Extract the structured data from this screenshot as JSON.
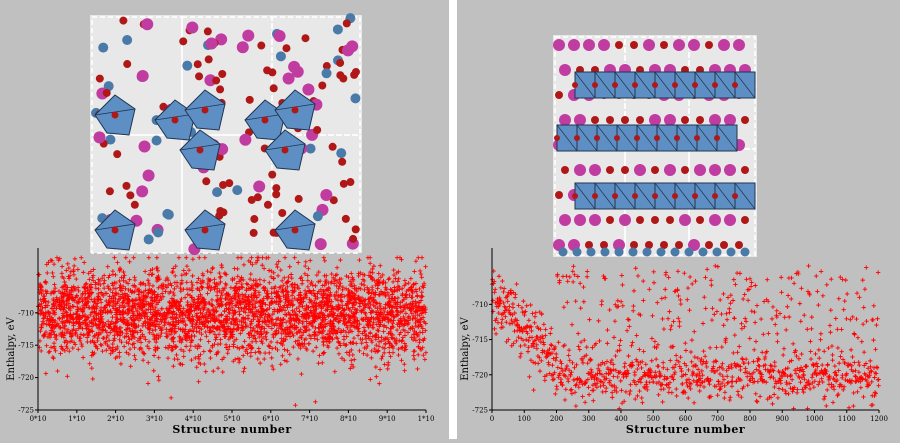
{
  "chart_data": [
    {
      "type": "scatter",
      "marker": "+",
      "color": "#ff0000",
      "xlabel": "Structure number",
      "ylabel": "Enthalpy, eV",
      "xlim": [
        0,
        10000
      ],
      "ylim": [
        -725,
        -700
      ],
      "xticks": [
        0,
        1000,
        2000,
        3000,
        4000,
        5000,
        6000,
        7000,
        8000,
        9000,
        10000
      ],
      "xtick_labels": [
        "0*10",
        "1*10",
        "2*10",
        "3*10",
        "4*10",
        "5*10",
        "6*10",
        "7*10",
        "8*10",
        "9*10",
        "1*10"
      ],
      "yticks": [
        -725,
        -720,
        -715,
        -710
      ],
      "ytick_labels": [
        "-725",
        "-720",
        "-715",
        "-710"
      ],
      "n_points": 3500,
      "distribution": "dense band: mean -710 eV, spread -724..-702 eV, flat over the whole x range",
      "inset": "crystal structure with distorted octahedra (blue), red and magenta atoms"
    },
    {
      "type": "scatter",
      "marker": "+",
      "color": "#ff0000",
      "xlabel": "Structure number",
      "ylabel": "Enthalpy, eV",
      "xlim": [
        0,
        1200
      ],
      "ylim": [
        -725,
        -702
      ],
      "xticks": [
        0,
        100,
        200,
        300,
        400,
        500,
        600,
        700,
        800,
        900,
        1000,
        1100,
        1200
      ],
      "xtick_labels": [
        "0",
        "100",
        "200",
        "300",
        "400",
        "500",
        "600",
        "700",
        "800",
        "900",
        "1000",
        "1100",
        "1200"
      ],
      "yticks": [
        -725,
        -720,
        -715,
        -710
      ],
      "ytick_labels": [
        "-725",
        "-720",
        "-715",
        "-710"
      ],
      "n_points": 1200,
      "distribution": "starts near -709 eV at x=0, descends to a dense lower band around -720 eV by x~200, upper scatter -704..-712 eV persists",
      "inset": "layered crystal structure with chains of octahedra (blue), red and magenta atoms"
    }
  ]
}
